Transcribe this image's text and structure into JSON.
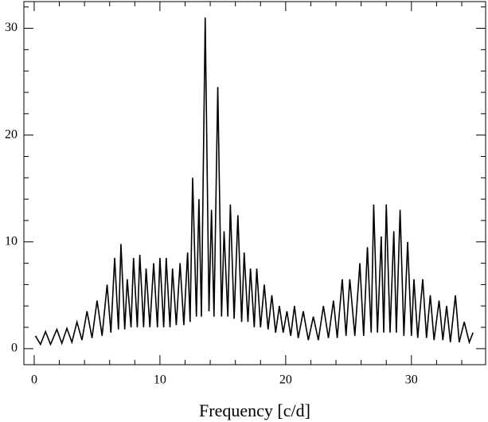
{
  "chart_data": {
    "type": "line",
    "xlabel": "Frequency [c/d]",
    "x": [
      0.1,
      0.5,
      0.9,
      1.3,
      1.8,
      2.2,
      2.6,
      3.0,
      3.4,
      3.8,
      4.2,
      4.6,
      5.0,
      5.4,
      5.8,
      6.1,
      6.4,
      6.7,
      6.9,
      7.2,
      7.4,
      7.7,
      7.9,
      8.2,
      8.4,
      8.7,
      8.9,
      9.2,
      9.5,
      9.8,
      10.0,
      10.3,
      10.5,
      10.8,
      11.0,
      11.3,
      11.6,
      11.9,
      12.2,
      12.4,
      12.6,
      12.9,
      13.1,
      13.3,
      13.6,
      13.9,
      14.1,
      14.3,
      14.6,
      14.9,
      15.1,
      15.4,
      15.6,
      15.9,
      16.2,
      16.5,
      16.7,
      17.0,
      17.2,
      17.5,
      17.7,
      18.0,
      18.3,
      18.6,
      18.9,
      19.2,
      19.5,
      19.8,
      20.1,
      20.4,
      20.7,
      21.0,
      21.4,
      21.8,
      22.2,
      22.6,
      23.0,
      23.4,
      23.8,
      24.1,
      24.5,
      24.8,
      25.1,
      25.5,
      25.9,
      26.2,
      26.5,
      26.8,
      27.0,
      27.3,
      27.6,
      27.8,
      28.0,
      28.3,
      28.6,
      28.8,
      29.1,
      29.4,
      29.7,
      30.0,
      30.2,
      30.5,
      30.9,
      31.2,
      31.5,
      31.8,
      32.2,
      32.5,
      32.8,
      33.1,
      33.5,
      33.8,
      34.2,
      34.6,
      34.9
    ],
    "values": [
      1.2,
      0.4,
      1.6,
      0.4,
      1.8,
      0.5,
      1.9,
      0.6,
      2.5,
      0.8,
      3.5,
      1.0,
      4.5,
      1.2,
      6.0,
      1.5,
      8.5,
      1.8,
      9.8,
      1.8,
      6.5,
      2.0,
      8.5,
      2.0,
      8.8,
      2.0,
      7.5,
      2.0,
      8.0,
      2.0,
      8.5,
      2.0,
      8.5,
      2.0,
      7.5,
      2.2,
      8.0,
      2.2,
      9.0,
      2.5,
      16.0,
      3.0,
      14.0,
      3.0,
      31.0,
      3.5,
      13.0,
      3.0,
      24.5,
      3.0,
      11.0,
      3.0,
      13.5,
      2.8,
      12.5,
      2.5,
      9.0,
      2.5,
      7.5,
      2.0,
      7.5,
      2.0,
      6.0,
      1.8,
      5.0,
      1.5,
      4.0,
      1.5,
      3.5,
      1.2,
      4.0,
      1.0,
      3.5,
      0.8,
      3.0,
      0.8,
      4.0,
      1.0,
      4.5,
      1.0,
      6.5,
      1.2,
      6.5,
      1.2,
      8.0,
      1.2,
      9.5,
      1.5,
      13.5,
      1.5,
      10.5,
      1.5,
      13.5,
      1.5,
      11.0,
      1.5,
      13.0,
      1.2,
      10.0,
      1.2,
      6.5,
      1.0,
      6.5,
      1.0,
      5.0,
      0.8,
      4.5,
      0.8,
      4.0,
      0.6,
      5.0,
      0.6,
      2.5,
      0.6,
      1.5
    ],
    "color": "#000000",
    "xlim": [
      -0.82,
      35.9
    ],
    "ylim": [
      -1.5,
      32.5
    ],
    "xticks": [
      0,
      10,
      20,
      30
    ],
    "yticks": [
      0,
      10,
      20,
      30
    ],
    "xminorticks": [
      2,
      4,
      6,
      8,
      12,
      14,
      16,
      18,
      22,
      24,
      26,
      28,
      32,
      34
    ],
    "yminorticks": [
      2,
      4,
      6,
      8,
      12,
      14,
      16,
      18,
      22,
      24,
      26,
      28,
      32
    ]
  }
}
